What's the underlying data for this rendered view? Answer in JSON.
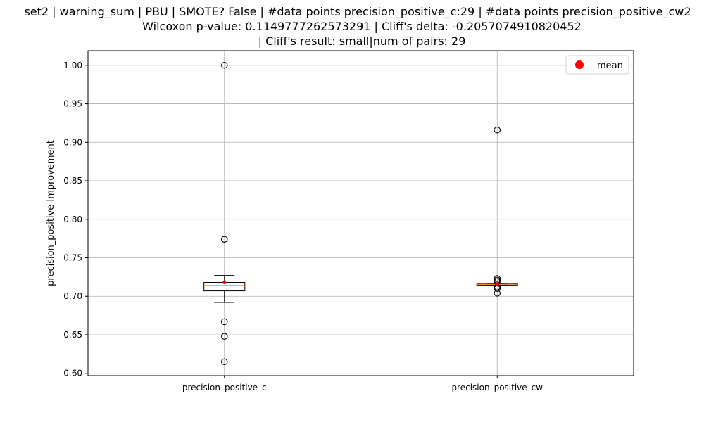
{
  "chart_data": {
    "type": "box",
    "title_lines": [
      "set2 | warning_sum | PBU | SMOTE? False | #data points precision_positive_c:29 | #data points precision_positive_cw2",
      "Wilcoxon p-value: 0.1149777262573291 | Cliff's delta: -0.2057074910820452",
      "| Cliff's result: small|num of pairs: 29"
    ],
    "ylabel": "precision_positive Improvement",
    "xlabel": "",
    "categories": [
      "precision_positive_c",
      "precision_positive_cw"
    ],
    "ylim": [
      0.597,
      1.019
    ],
    "yticks": [
      0.6,
      0.65,
      0.7,
      0.75,
      0.8,
      0.85,
      0.9,
      0.95,
      1.0
    ],
    "ytick_labels": [
      "0.60",
      "0.65",
      "0.70",
      "0.75",
      "0.80",
      "0.85",
      "0.90",
      "0.95",
      "1.00"
    ],
    "grid": true,
    "legend": {
      "placement": "top-right",
      "entries": [
        {
          "label": "mean",
          "color": "#ff0000",
          "marker": "circle"
        }
      ]
    },
    "boxes": [
      {
        "name": "precision_positive_c",
        "q1": 0.707,
        "median": 0.714,
        "q3": 0.718,
        "whisker_low": 0.692,
        "whisker_high": 0.727,
        "mean": 0.718,
        "outliers": [
          1.0,
          0.774,
          0.667,
          0.648,
          0.615
        ]
      },
      {
        "name": "precision_positive_cw",
        "q1": 0.7145,
        "median": 0.7155,
        "q3": 0.716,
        "whisker_low": 0.7145,
        "whisker_high": 0.716,
        "mean": 0.716,
        "outliers": [
          0.916,
          0.723,
          0.721,
          0.719,
          0.712,
          0.71,
          0.704
        ]
      }
    ],
    "colors": {
      "box": "#000000",
      "median": "#ff7f0e",
      "mean": "#ff0000",
      "grid": "#b0b0b0",
      "outlier_edge": "#000000"
    }
  }
}
